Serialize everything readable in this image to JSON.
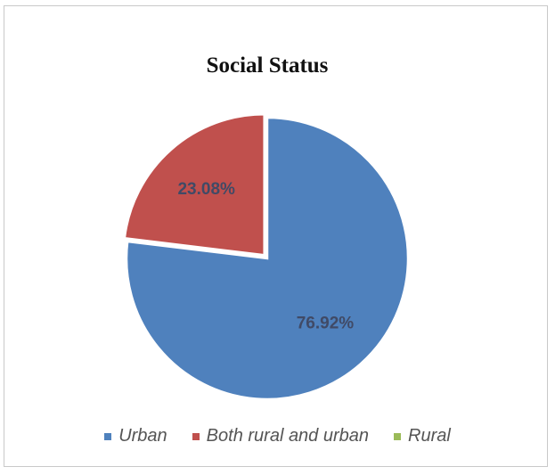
{
  "chart_data": {
    "type": "pie",
    "title": "Social Status",
    "categories": [
      "Urban",
      "Both rural and urban",
      "Rural"
    ],
    "values": [
      76.92,
      23.08,
      0
    ],
    "data_labels": [
      "76.92%",
      "23.08%",
      ""
    ],
    "colors": [
      "#4f81bd",
      "#c0504d",
      "#9bbb59"
    ],
    "label_color": "#404a66",
    "legend_position": "bottom",
    "exploded_slice": "Both rural and urban"
  }
}
